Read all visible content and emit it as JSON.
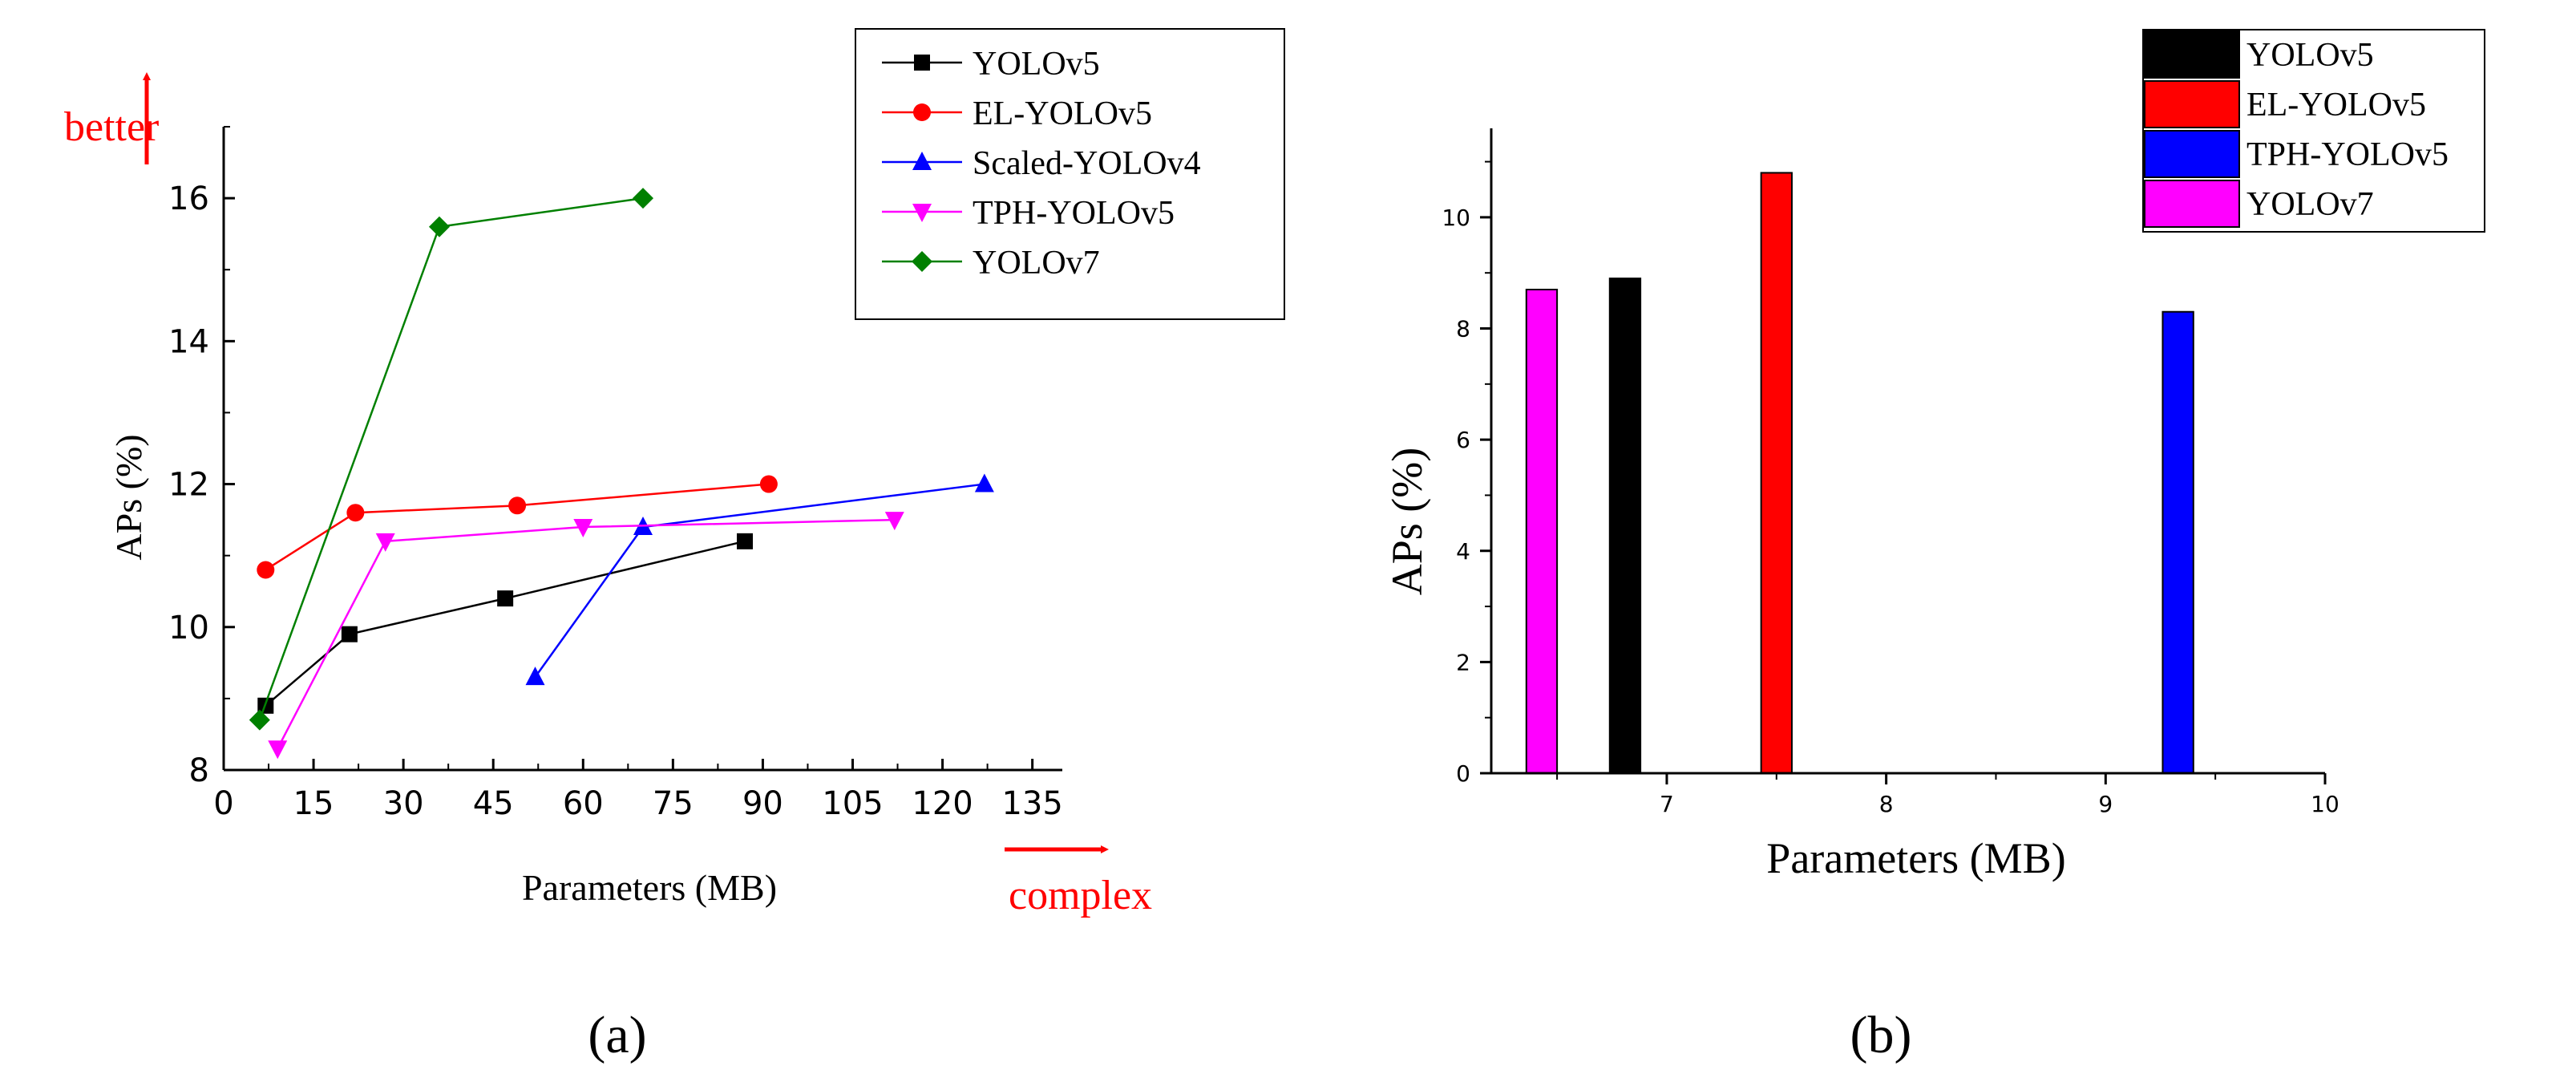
{
  "colors": {
    "axis": "#000000",
    "annotation": "#ff0000",
    "yolov5": "#000000",
    "el_yolov5": "#ff0000",
    "scaled_yolov4": "#0000ff",
    "tph_yolov5": "#ff00ff",
    "yolov7": "#008000"
  },
  "panels": {
    "a": {
      "label": "(a)",
      "annotations": {
        "better": "better",
        "complex": "complex"
      }
    },
    "b": {
      "label": "(b)"
    }
  },
  "chart_data": [
    {
      "type": "line",
      "panel": "a",
      "title": "",
      "xlabel": "Parameters (MB)",
      "ylabel": "APs (%)",
      "xlim": [
        0,
        140
      ],
      "ylim": [
        8,
        17
      ],
      "xticks": [
        0,
        15,
        30,
        45,
        60,
        75,
        90,
        105,
        120,
        135
      ],
      "yticks": [
        8,
        10,
        12,
        14,
        16
      ],
      "legend_position": "top-right",
      "series": [
        {
          "name": "YOLOv5",
          "marker": "square",
          "color": "#000000",
          "x": [
            7,
            21,
            47,
            87
          ],
          "y": [
            8.9,
            9.9,
            10.4,
            11.2
          ]
        },
        {
          "name": "EL-YOLOv5",
          "marker": "circle",
          "color": "#ff0000",
          "x": [
            7,
            22,
            49,
            91
          ],
          "y": [
            10.8,
            11.6,
            11.7,
            12.0
          ]
        },
        {
          "name": "Scaled-YOLOv4",
          "marker": "triangle-up",
          "color": "#0000ff",
          "x": [
            52,
            70,
            127
          ],
          "y": [
            9.3,
            11.4,
            12.0
          ]
        },
        {
          "name": "TPH-YOLOv5",
          "marker": "triangle-down",
          "color": "#ff00ff",
          "x": [
            9,
            27,
            60,
            112
          ],
          "y": [
            8.3,
            11.2,
            11.4,
            11.5
          ]
        },
        {
          "name": "YOLOv7",
          "marker": "diamond",
          "color": "#008000",
          "x": [
            6,
            36,
            70
          ],
          "y": [
            8.7,
            15.6,
            16.0
          ]
        }
      ]
    },
    {
      "type": "bar",
      "panel": "b",
      "title": "",
      "xlabel": "Parameters (MB)",
      "ylabel": "APs (%)",
      "xlim": [
        6.2,
        10
      ],
      "ylim": [
        0,
        11.6
      ],
      "xticks": [
        7,
        8,
        9,
        10
      ],
      "yticks": [
        0,
        2,
        4,
        6,
        8,
        10
      ],
      "bar_width_units": 0.14,
      "legend_position": "top-right",
      "series": [
        {
          "name": "YOLOv5",
          "color": "#000000",
          "x": 6.81,
          "value": 8.9
        },
        {
          "name": "EL-YOLOv5",
          "color": "#ff0000",
          "x": 7.5,
          "value": 10.8
        },
        {
          "name": "TPH-YOLOv5",
          "color": "#0000ff",
          "x": 9.33,
          "value": 8.3
        },
        {
          "name": "YOLOv7",
          "color": "#ff00ff",
          "x": 6.43,
          "value": 8.7
        }
      ]
    }
  ]
}
